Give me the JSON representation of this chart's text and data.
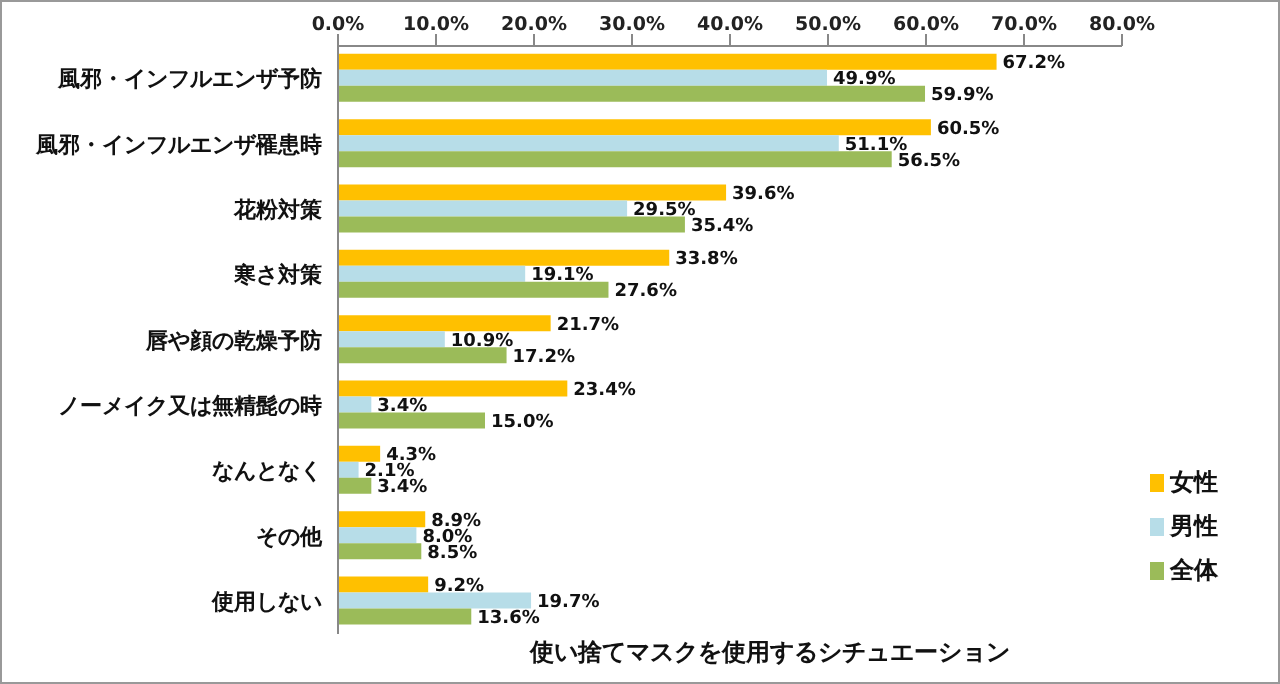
{
  "chart_data": {
    "type": "bar",
    "orientation": "horizontal",
    "annotations": [
      "使い捨てマスクを使用するシチュエーション"
    ],
    "categories": [
      "風邪・インフルエンザ予防",
      "風邪・インフルエンザ罹患時",
      "花粉対策",
      "寒さ対策",
      "唇や顔の乾燥予防",
      "ノーメイク又は無精髭の時",
      "なんとなく",
      "その他",
      "使用しない"
    ],
    "series": [
      {
        "name": "女性",
        "color": "#ffc000",
        "values": [
          67.2,
          60.5,
          39.6,
          33.8,
          21.7,
          23.4,
          4.3,
          8.9,
          9.2
        ],
        "value_labels": [
          "67.2%",
          "60.5%",
          "39.6%",
          "33.8%",
          "21.7%",
          "23.4%",
          "4.3%",
          "8.9%",
          "9.2%"
        ]
      },
      {
        "name": "男性",
        "color": "#b7dde8",
        "values": [
          49.9,
          51.1,
          29.5,
          19.1,
          10.9,
          3.4,
          2.1,
          8.0,
          19.7
        ],
        "value_labels": [
          "49.9%",
          "51.1%",
          "29.5%",
          "19.1%",
          "10.9%",
          "3.4%",
          "2.1%",
          "8.0%",
          "19.7%"
        ]
      },
      {
        "name": "全体",
        "color": "#9bbb59",
        "values": [
          59.9,
          56.5,
          35.4,
          27.6,
          17.2,
          15.0,
          3.4,
          8.5,
          13.6
        ],
        "value_labels": [
          "59.9%",
          "56.5%",
          "35.4%",
          "27.6%",
          "17.2%",
          "15.0%",
          "3.4%",
          "8.5%",
          "13.6%"
        ]
      }
    ],
    "xlim": [
      0,
      80
    ],
    "xticks": [
      {
        "value": 0,
        "label": "0.0%"
      },
      {
        "value": 10,
        "label": "10.0%"
      },
      {
        "value": 20,
        "label": "20.0%"
      },
      {
        "value": 30,
        "label": "30.0%"
      },
      {
        "value": 40,
        "label": "40.0%"
      },
      {
        "value": 50,
        "label": "50.0%"
      },
      {
        "value": 60,
        "label": "60.0%"
      },
      {
        "value": 70,
        "label": "70.0%"
      },
      {
        "value": 80,
        "label": "80.0%"
      }
    ],
    "grid": false,
    "legend": "bottom right"
  }
}
